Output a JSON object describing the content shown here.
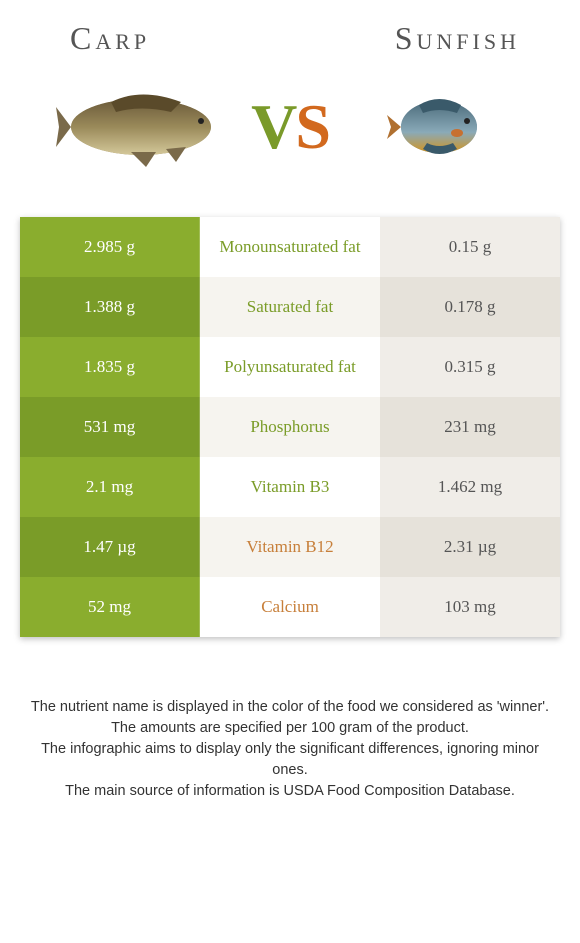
{
  "header": {
    "left_title": "Carp",
    "right_title": "Sunfish",
    "vs_v": "V",
    "vs_s": "S"
  },
  "colors": {
    "left_primary": "#8aad2e",
    "left_alt": "#7a9c28",
    "right_primary": "#f0ede8",
    "right_alt": "#e6e2da",
    "mid_bg_primary": "#ffffff",
    "mid_bg_alt": "#f6f4ef",
    "mid_text_left_win": "#7a9c28",
    "mid_text_right_win": "#c77f3a",
    "left_text": "#ffffff",
    "right_text": "#555555"
  },
  "rows": [
    {
      "left": "2.985 g",
      "mid": "Monounsaturated fat",
      "right": "0.15 g",
      "winner": "left"
    },
    {
      "left": "1.388 g",
      "mid": "Saturated fat",
      "right": "0.178 g",
      "winner": "left"
    },
    {
      "left": "1.835 g",
      "mid": "Polyunsaturated fat",
      "right": "0.315 g",
      "winner": "left"
    },
    {
      "left": "531 mg",
      "mid": "Phosphorus",
      "right": "231 mg",
      "winner": "left"
    },
    {
      "left": "2.1 mg",
      "mid": "Vitamin B3",
      "right": "1.462 mg",
      "winner": "left"
    },
    {
      "left": "1.47 µg",
      "mid": "Vitamin B12",
      "right": "2.31 µg",
      "winner": "right"
    },
    {
      "left": "52 mg",
      "mid": "Calcium",
      "right": "103 mg",
      "winner": "right"
    }
  ],
  "footer": {
    "line1": "The nutrient name is displayed in the color of the food we considered as 'winner'.",
    "line2": "The amounts are specified per 100 gram of the product.",
    "line3": "The infographic aims to display only the significant differences, ignoring minor ones.",
    "line4": "The main source of information is USDA Food Composition Database."
  }
}
